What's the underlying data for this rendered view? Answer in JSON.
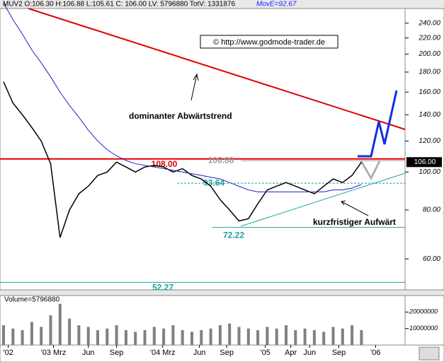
{
  "chart_data": {
    "type": "line",
    "title": "MUV2 O:106.30 H:106.88 L:105.61 C: 106.00 LV: 5796880 TotV: 1331876",
    "indicator": "MovE=92.67",
    "copyright": "© http://www.godmode-trader.de",
    "log_scale": true,
    "ylim": [
      50,
      275
    ],
    "yticks": [
      {
        "value": 60,
        "label": "60.00"
      },
      {
        "value": 80,
        "label": "80.00"
      },
      {
        "value": 100,
        "label": "100.00"
      },
      {
        "value": 120,
        "label": "120.00"
      },
      {
        "value": 140,
        "label": "140.00"
      },
      {
        "value": 160,
        "label": "160.00"
      },
      {
        "value": 180,
        "label": "180.00"
      },
      {
        "value": 200,
        "label": "200.00"
      },
      {
        "value": 220,
        "label": "220.00"
      },
      {
        "value": 240,
        "label": "240.00"
      }
    ],
    "xticks": [
      {
        "value": 0.5,
        "label": "'02"
      },
      {
        "value": 5.3,
        "label": "'03 Mrz"
      },
      {
        "value": 9,
        "label": "Jun"
      },
      {
        "value": 12,
        "label": "Sep"
      },
      {
        "value": 16.9,
        "label": "'04 Mrz"
      },
      {
        "value": 20.8,
        "label": "Jun"
      },
      {
        "value": 23.7,
        "label": "Sep"
      },
      {
        "value": 27.8,
        "label": "'05"
      },
      {
        "value": 30.5,
        "label": "Apr"
      },
      {
        "value": 32.5,
        "label": "Jun"
      },
      {
        "value": 35.6,
        "label": "Sep"
      },
      {
        "value": 39.5,
        "label": "'06"
      }
    ],
    "series": [
      {
        "name": "MUV2",
        "color": "#000000",
        "values": [
          170,
          150,
          140,
          130,
          120,
          105,
          68,
          80,
          88,
          92,
          98,
          100,
          106,
          103,
          100,
          103,
          104,
          103,
          100,
          102,
          98,
          96,
          92,
          85,
          80,
          75,
          76,
          83,
          90,
          92,
          94,
          92,
          90,
          88,
          92,
          96,
          94,
          98,
          106
        ]
      },
      {
        "name": "MovE",
        "color": "#2020c0",
        "values": [
          270,
          245,
          225,
          205,
          190,
          175,
          160,
          148,
          138,
          128,
          120,
          114,
          110,
          107,
          105,
          104,
          103,
          102,
          101,
          100,
          99,
          98,
          97,
          96,
          94,
          92,
          90,
          89,
          89,
          89,
          89,
          89,
          89,
          89,
          89,
          90,
          90,
          91,
          93
        ]
      }
    ],
    "last_price": {
      "value": 106,
      "label": "106.00"
    },
    "levels": [
      {
        "value": 108,
        "label": "108.00",
        "color": "#e00000"
      },
      {
        "value": 106.88,
        "label": "106.88",
        "color": "#999999"
      },
      {
        "value": 93.64,
        "label": "93.64",
        "color": "#20a0a0"
      },
      {
        "value": 72.22,
        "label": "72.22",
        "color": "#20a0a0"
      },
      {
        "value": 52.27,
        "label": "52.27",
        "color": "#20a0a0"
      }
    ],
    "annotations": [
      "dominanter Abwärtstrend",
      "kurzfristiger Aufwärt"
    ],
    "volume": {
      "label": "Volume=5796880",
      "color": "#808080",
      "ylim": [
        0,
        30000000
      ],
      "yticks": [
        10000000,
        20000000
      ],
      "values": [
        12000000,
        10000000,
        9000000,
        14000000,
        11000000,
        18000000,
        25000000,
        16000000,
        12000000,
        11000000,
        9000000,
        10000000,
        12000000,
        9000000,
        8000000,
        9000000,
        11000000,
        10000000,
        12000000,
        9000000,
        8000000,
        9000000,
        10000000,
        12000000,
        13000000,
        11000000,
        10000000,
        9000000,
        11000000,
        10000000,
        12000000,
        9000000,
        10000000,
        9000000,
        8000000,
        11000000,
        10000000,
        12000000,
        9000000
      ]
    }
  }
}
